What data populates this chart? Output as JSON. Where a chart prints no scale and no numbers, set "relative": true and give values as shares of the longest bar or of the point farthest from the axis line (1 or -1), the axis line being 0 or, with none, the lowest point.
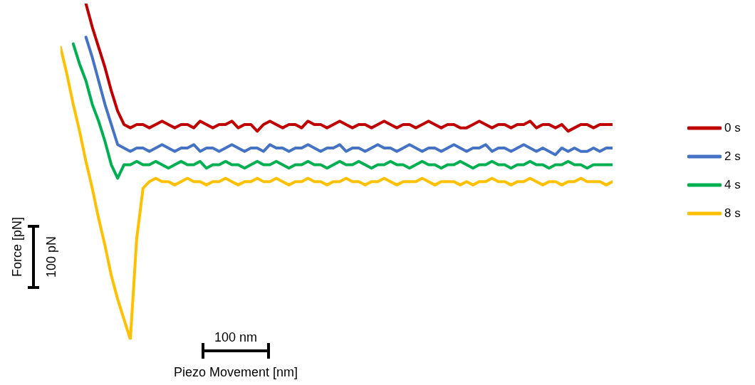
{
  "chart_data": {
    "type": "line",
    "relative": true,
    "xlabel": "Piezo Movement [nm]",
    "ylabel": "Force [pN]",
    "annotations": [
      "100 pN",
      "100 nm"
    ],
    "legend": "right",
    "marker": "none",
    "line_style": "solid",
    "categories": [
      null,
      null,
      null,
      null,
      null,
      null,
      null,
      null,
      null,
      null,
      null,
      null,
      null,
      null,
      null,
      null,
      null,
      null,
      null,
      null,
      null,
      null,
      null,
      null,
      null,
      null,
      null,
      null,
      null,
      null,
      null,
      null,
      null,
      null,
      null,
      null,
      null,
      null,
      null,
      null,
      null,
      null,
      null,
      null,
      null,
      null,
      null,
      null,
      null,
      null,
      null,
      null,
      null,
      null,
      null,
      null,
      null,
      null,
      null,
      null,
      null,
      null,
      null,
      null,
      null,
      null,
      null,
      null,
      null,
      null,
      null,
      null,
      null,
      null,
      null,
      null,
      null,
      null,
      null,
      null,
      null,
      null,
      null,
      null,
      null,
      null,
      null,
      null
    ],
    "series": [
      {
        "name": "0 s",
        "color": "#c00000",
        "values": [
          null,
          null,
          null,
          null,
          1.0,
          0.93,
          0.87,
          0.81,
          0.74,
          0.68,
          0.64,
          0.63,
          0.64,
          0.64,
          0.63,
          0.64,
          0.65,
          0.64,
          0.63,
          0.64,
          0.64,
          0.63,
          0.65,
          0.64,
          0.63,
          0.64,
          0.64,
          0.65,
          0.63,
          0.64,
          0.64,
          0.62,
          0.64,
          0.65,
          0.64,
          0.63,
          0.64,
          0.64,
          0.63,
          0.65,
          0.64,
          0.64,
          0.63,
          0.64,
          0.65,
          0.64,
          0.63,
          0.64,
          0.64,
          0.63,
          0.64,
          0.65,
          0.64,
          0.63,
          0.64,
          0.64,
          0.63,
          0.64,
          0.65,
          0.64,
          0.63,
          0.64,
          0.64,
          0.63,
          0.63,
          0.64,
          0.65,
          0.64,
          0.63,
          0.64,
          0.64,
          0.63,
          0.64,
          0.64,
          0.65,
          0.63,
          0.64,
          0.64,
          0.63,
          0.64,
          0.62,
          0.63,
          0.64,
          0.64,
          0.63,
          0.64,
          0.64,
          0.64
        ]
      },
      {
        "name": "2 s",
        "color": "#4472c4",
        "values": [
          null,
          null,
          null,
          null,
          0.9,
          0.84,
          0.77,
          0.7,
          0.64,
          0.58,
          0.57,
          0.56,
          0.57,
          0.57,
          0.56,
          0.57,
          0.58,
          0.57,
          0.56,
          0.57,
          0.57,
          0.58,
          0.56,
          0.57,
          0.57,
          0.56,
          0.57,
          0.58,
          0.57,
          0.56,
          0.57,
          0.57,
          0.56,
          0.58,
          0.57,
          0.57,
          0.56,
          0.57,
          0.57,
          0.58,
          0.57,
          0.56,
          0.57,
          0.57,
          0.58,
          0.56,
          0.57,
          0.57,
          0.56,
          0.57,
          0.58,
          0.57,
          0.57,
          0.56,
          0.57,
          0.58,
          0.57,
          0.56,
          0.57,
          0.57,
          0.56,
          0.57,
          0.58,
          0.57,
          0.56,
          0.57,
          0.57,
          0.58,
          0.56,
          0.57,
          0.57,
          0.56,
          0.57,
          0.58,
          0.57,
          0.56,
          0.57,
          0.56,
          0.55,
          0.57,
          0.56,
          0.57,
          0.56,
          0.56,
          0.57,
          0.56,
          0.57,
          0.57
        ]
      },
      {
        "name": "4 s",
        "color": "#00b050",
        "values": [
          null,
          null,
          0.88,
          0.82,
          0.77,
          0.7,
          0.65,
          0.59,
          0.52,
          0.48,
          0.52,
          0.52,
          0.53,
          0.52,
          0.52,
          0.53,
          0.52,
          0.51,
          0.52,
          0.53,
          0.52,
          0.52,
          0.53,
          0.51,
          0.52,
          0.52,
          0.53,
          0.52,
          0.52,
          0.51,
          0.52,
          0.53,
          0.52,
          0.52,
          0.53,
          0.52,
          0.51,
          0.52,
          0.52,
          0.53,
          0.52,
          0.52,
          0.51,
          0.52,
          0.53,
          0.52,
          0.52,
          0.53,
          0.52,
          0.51,
          0.52,
          0.52,
          0.53,
          0.52,
          0.52,
          0.51,
          0.52,
          0.53,
          0.52,
          0.52,
          0.51,
          0.52,
          0.52,
          0.53,
          0.52,
          0.51,
          0.52,
          0.52,
          0.53,
          0.52,
          0.52,
          0.51,
          0.52,
          0.52,
          0.53,
          0.52,
          0.52,
          0.51,
          0.52,
          0.52,
          0.53,
          0.52,
          0.52,
          0.51,
          0.52,
          0.52,
          0.52,
          0.52
        ]
      },
      {
        "name": "8 s",
        "color": "#ffc000",
        "values": [
          0.87,
          0.79,
          0.7,
          0.62,
          0.53,
          0.45,
          0.36,
          0.28,
          0.19,
          0.12,
          0.06,
          0.0,
          0.3,
          0.45,
          0.47,
          0.48,
          0.47,
          0.47,
          0.46,
          0.47,
          0.48,
          0.47,
          0.47,
          0.46,
          0.47,
          0.47,
          0.48,
          0.47,
          0.46,
          0.47,
          0.47,
          0.48,
          0.47,
          0.47,
          0.48,
          0.47,
          0.46,
          0.47,
          0.47,
          0.48,
          0.47,
          0.47,
          0.46,
          0.47,
          0.47,
          0.48,
          0.47,
          0.47,
          0.46,
          0.47,
          0.47,
          0.48,
          0.47,
          0.46,
          0.47,
          0.47,
          0.47,
          0.48,
          0.47,
          0.46,
          0.47,
          0.47,
          0.47,
          0.46,
          0.47,
          0.46,
          0.47,
          0.47,
          0.48,
          0.47,
          0.47,
          0.46,
          0.47,
          0.47,
          0.48,
          0.47,
          0.46,
          0.47,
          0.47,
          0.46,
          0.47,
          0.47,
          0.48,
          0.47,
          0.47,
          0.47,
          0.46,
          0.47
        ]
      }
    ]
  }
}
